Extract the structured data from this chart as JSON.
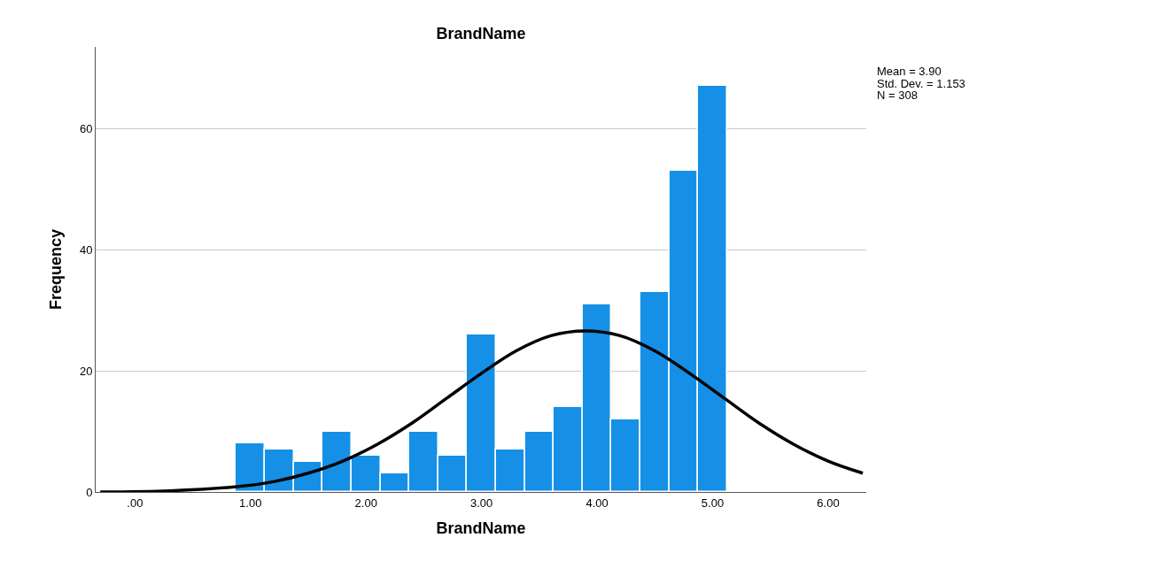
{
  "chart_data": {
    "type": "histogram",
    "title": "BrandName",
    "xlabel": "BrandName",
    "ylabel": "Frequency",
    "bins": [
      0.875,
      1.125,
      1.375,
      1.625,
      1.875,
      2.125,
      2.375,
      2.625,
      2.875,
      3.125,
      3.375,
      3.625,
      3.875,
      4.125,
      4.375,
      4.625,
      4.875,
      5.125
    ],
    "values": [
      8,
      7,
      5,
      10,
      6,
      3,
      10,
      6,
      26,
      7,
      10,
      14,
      31,
      12,
      33,
      53,
      67
    ],
    "color": "#1590e6",
    "series": [
      {
        "type": "line",
        "color": "#000000",
        "x": [
          -0.3,
          0.3,
          0.9,
          1.2,
          1.5,
          1.8,
          2.1,
          2.4,
          2.7,
          3.0,
          3.3,
          3.6,
          3.9,
          4.2,
          4.5,
          4.8,
          5.1,
          5.4,
          5.7,
          6.0,
          6.3
        ],
        "values": [
          0.0,
          0.2,
          0.9,
          1.7,
          3.1,
          5.1,
          7.9,
          11.4,
          15.5,
          19.6,
          23.3,
          25.8,
          26.6,
          25.8,
          23.3,
          19.6,
          15.5,
          11.4,
          7.9,
          5.1,
          3.1
        ]
      }
    ],
    "xlim": [
      -0.34,
      6.33
    ],
    "ylim": [
      0,
      73.5
    ],
    "xticks": [
      {
        "value": 0,
        "label": ".00"
      },
      {
        "value": 1,
        "label": "1.00"
      },
      {
        "value": 2,
        "label": "2.00"
      },
      {
        "value": 3,
        "label": "3.00"
      },
      {
        "value": 4,
        "label": "4.00"
      },
      {
        "value": 5,
        "label": "5.00"
      },
      {
        "value": 6,
        "label": "6.00"
      }
    ],
    "yticks": [
      0,
      20,
      40,
      60
    ],
    "grid": "y",
    "annotations": [
      "Mean = 3.90",
      "Std. Dev. = 1.153",
      "N = 308"
    ]
  }
}
